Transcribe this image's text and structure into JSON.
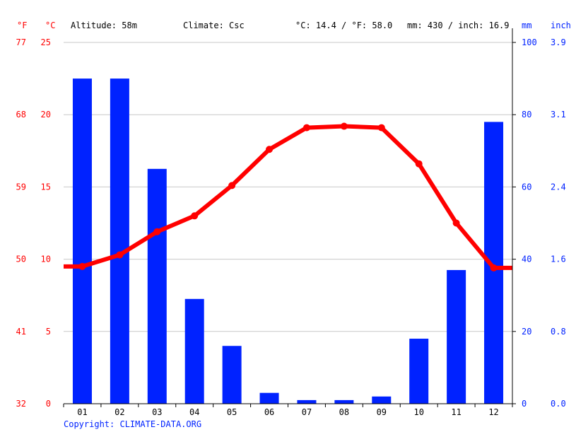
{
  "header": {
    "unit_f": "°F",
    "unit_c": "°C",
    "altitude": "Altitude: 58m",
    "climate": "Climate: Csc",
    "temp_summary": "°C: 14.4 / °F: 58.0",
    "precip_summary": "mm: 430 / inch: 16.9",
    "unit_mm": "mm",
    "unit_inch": "inch"
  },
  "copyright": "Copyright: CLIMATE-DATA.ORG",
  "colors": {
    "temperature": "#ff0000",
    "precipitation": "#0022ff",
    "grid": "#c8c8c8",
    "axis": "#000000"
  },
  "chart_data": {
    "type": "bar+line",
    "categories": [
      "01",
      "02",
      "03",
      "04",
      "05",
      "06",
      "07",
      "08",
      "09",
      "10",
      "11",
      "12"
    ],
    "series": [
      {
        "type": "bar",
        "axis": "right",
        "unit": "mm",
        "values": [
          90,
          90,
          65,
          29,
          16,
          3,
          1,
          1,
          2,
          18,
          37,
          78
        ]
      },
      {
        "type": "line",
        "axis": "left",
        "unit": "°C",
        "values": [
          9.5,
          10.3,
          11.9,
          13.0,
          15.1,
          17.6,
          19.1,
          19.2,
          19.1,
          16.6,
          12.5,
          9.4
        ]
      }
    ],
    "y_left_c": {
      "range": [
        0,
        25
      ],
      "ticks": [
        "0",
        "5",
        "10",
        "15",
        "20",
        "25"
      ]
    },
    "y_left_f": {
      "ticks": [
        "32",
        "41",
        "50",
        "59",
        "68",
        "77"
      ]
    },
    "y_right_mm": {
      "range": [
        0,
        100
      ],
      "ticks": [
        "0",
        "20",
        "40",
        "60",
        "80",
        "100"
      ]
    },
    "y_right_inch": {
      "ticks": [
        "0.0",
        "0.8",
        "1.6",
        "2.4",
        "3.1",
        "3.9"
      ]
    },
    "grid": true
  }
}
